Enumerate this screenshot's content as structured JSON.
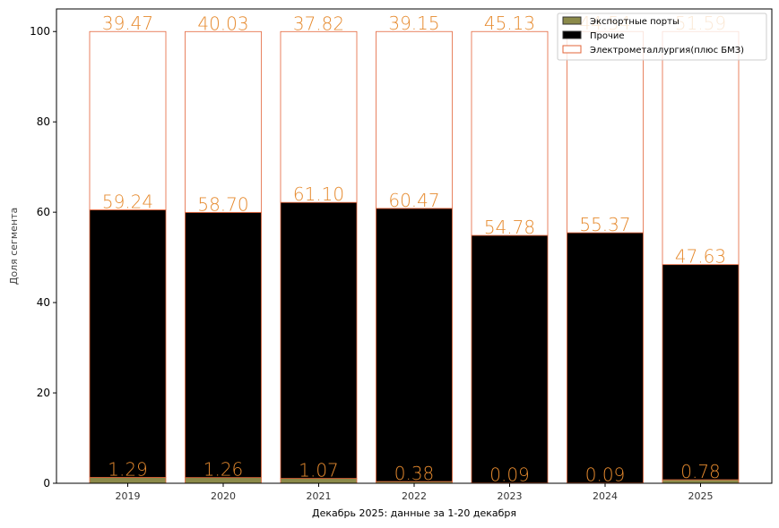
{
  "chart_data": {
    "type": "bar",
    "stacked": true,
    "categories": [
      "2019",
      "2020",
      "2021",
      "2022",
      "2023",
      "2024",
      "2025"
    ],
    "series": [
      {
        "name": "Экспортные порты",
        "values": [
          1.29,
          1.26,
          1.07,
          0.38,
          0.09,
          0.09,
          0.78
        ],
        "labels": [
          "1.29",
          "1.26",
          "1.07",
          "0.38",
          "0.09",
          "0.09",
          "0.78"
        ]
      },
      {
        "name": "Прочие",
        "values": [
          59.24,
          58.7,
          61.1,
          60.47,
          54.78,
          55.37,
          47.63
        ],
        "labels": [
          "59.24",
          "58.70",
          "61.10",
          "60.47",
          "54.78",
          "55.37",
          "47.63"
        ]
      },
      {
        "name": "Электрометаллургия(плюс БМЗ)",
        "values": [
          39.47,
          40.03,
          37.82,
          39.15,
          45.13,
          44.54,
          51.59
        ],
        "labels": [
          "39.47",
          "40.03",
          "37.82",
          "39.15",
          "45.13",
          "44.54",
          "51.59"
        ]
      }
    ],
    "xlabel": "Декабрь 2025: данные за 1-20 декабря",
    "ylabel": "Доля сегмента",
    "ylim": [
      0,
      105
    ],
    "yticks": [
      0,
      20,
      40,
      60,
      80,
      100
    ],
    "grid": false,
    "legend_position": "top-right",
    "colors": {
      "export_fill": "#8b8a4a",
      "other_fill": "#000000",
      "electro_fill": "#ffffff",
      "bar_edge": "#e3643a",
      "label": "#e68a2e"
    }
  }
}
